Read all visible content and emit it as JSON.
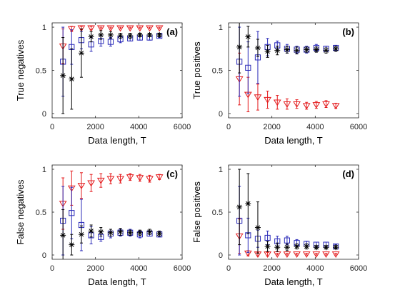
{
  "chart_data": [
    {
      "type": "scatter",
      "tag": "(a)",
      "xlabel": "Data length, T",
      "ylabel": "True negatives",
      "xlim": [
        0,
        6000
      ],
      "ylim": [
        -0.05,
        1.05
      ],
      "xticks": [
        0,
        2000,
        4000,
        6000
      ],
      "yticks": [
        0,
        0.5,
        1
      ],
      "xtick_labels": [
        "0",
        "2000",
        "4000",
        "6000"
      ],
      "ytick_labels": [
        "0",
        "0.5",
        "1"
      ],
      "series": [
        {
          "marker": "triangle-down",
          "color": "#e41a1c",
          "x": [
            500,
            900,
            1350,
            1800,
            2250,
            2700,
            3150,
            3600,
            4050,
            4500,
            4950
          ],
          "y": [
            0.78,
            0.98,
            0.99,
            0.99,
            0.99,
            0.99,
            0.99,
            0.99,
            0.99,
            0.99,
            0.99
          ],
          "err": [
            0.2,
            0.03,
            0.02,
            0.02,
            0.01,
            0.01,
            0.01,
            0.01,
            0.01,
            0.01,
            0.01
          ]
        },
        {
          "marker": "square",
          "color": "#2a2ab8",
          "x": [
            500,
            900,
            1350,
            1800,
            2250,
            2700,
            3150,
            3600,
            4050,
            4500,
            4950
          ],
          "y": [
            0.6,
            0.77,
            0.85,
            0.8,
            0.84,
            0.83,
            0.86,
            0.87,
            0.88,
            0.88,
            0.9
          ],
          "err": [
            0.4,
            0.2,
            0.1,
            0.08,
            0.06,
            0.05,
            0.04,
            0.03,
            0.03,
            0.03,
            0.02
          ]
        },
        {
          "marker": "asterisk",
          "color": "#000000",
          "x": [
            500,
            900,
            1350,
            1800,
            2250,
            2700,
            3150,
            3600,
            4050,
            4500,
            4950
          ],
          "y": [
            0.44,
            0.4,
            0.7,
            0.89,
            0.91,
            0.91,
            0.9,
            0.9,
            0.91,
            0.91,
            0.91
          ],
          "err": [
            0.44,
            0.35,
            0.28,
            0.06,
            0.05,
            0.04,
            0.03,
            0.03,
            0.02,
            0.02,
            0.02
          ]
        }
      ]
    },
    {
      "type": "scatter",
      "tag": "(b)",
      "xlabel": "Data length, T",
      "ylabel": "True positives",
      "xlim": [
        0,
        6000
      ],
      "ylim": [
        -0.05,
        1.05
      ],
      "xticks": [
        0,
        2000,
        4000,
        6000
      ],
      "yticks": [
        0,
        0.5,
        1
      ],
      "xtick_labels": [
        "0",
        "2000",
        "4000",
        "6000"
      ],
      "ytick_labels": [
        "0",
        "0.5",
        "1"
      ],
      "series": [
        {
          "marker": "triangle-down",
          "color": "#e41a1c",
          "x": [
            500,
            900,
            1350,
            1800,
            2250,
            2700,
            3150,
            3600,
            4050,
            4500,
            4950
          ],
          "y": [
            0.4,
            0.22,
            0.19,
            0.16,
            0.13,
            0.11,
            0.11,
            0.09,
            0.1,
            0.11,
            0.09
          ],
          "err": [
            0.3,
            0.2,
            0.15,
            0.1,
            0.08,
            0.06,
            0.05,
            0.04,
            0.04,
            0.04,
            0.03
          ]
        },
        {
          "marker": "square",
          "color": "#2a2ab8",
          "x": [
            500,
            900,
            1350,
            1800,
            2250,
            2700,
            3150,
            3600,
            4050,
            4500,
            4950
          ],
          "y": [
            0.6,
            0.53,
            0.65,
            0.77,
            0.79,
            0.75,
            0.74,
            0.74,
            0.76,
            0.75,
            0.76
          ],
          "err": [
            0.4,
            0.3,
            0.3,
            0.1,
            0.05,
            0.05,
            0.04,
            0.04,
            0.04,
            0.03,
            0.03
          ]
        },
        {
          "marker": "asterisk",
          "color": "#000000",
          "x": [
            500,
            900,
            1350,
            1800,
            2250,
            2700,
            3150,
            3600,
            4050,
            4500,
            4950
          ],
          "y": [
            0.77,
            0.89,
            0.76,
            0.72,
            0.73,
            0.74,
            0.73,
            0.74,
            0.74,
            0.73,
            0.75
          ],
          "err": [
            0.3,
            0.12,
            0.1,
            0.07,
            0.05,
            0.04,
            0.04,
            0.03,
            0.03,
            0.03,
            0.03
          ]
        }
      ]
    },
    {
      "type": "scatter",
      "tag": "(c)",
      "xlabel": "Data length, T",
      "ylabel": "False negatives",
      "xlim": [
        0,
        6000
      ],
      "ylim": [
        -0.05,
        1.05
      ],
      "xticks": [
        0,
        2000,
        4000,
        6000
      ],
      "yticks": [
        0,
        0.5,
        1
      ],
      "xtick_labels": [
        "0",
        "2000",
        "4000",
        "6000"
      ],
      "ytick_labels": [
        "0",
        "0.5",
        "1"
      ],
      "series": [
        {
          "marker": "triangle-down",
          "color": "#e41a1c",
          "x": [
            500,
            900,
            1350,
            1800,
            2250,
            2700,
            3150,
            3600,
            4050,
            4500,
            4950
          ],
          "y": [
            0.6,
            0.78,
            0.81,
            0.84,
            0.87,
            0.89,
            0.89,
            0.91,
            0.9,
            0.89,
            0.91
          ],
          "err": [
            0.3,
            0.2,
            0.15,
            0.1,
            0.08,
            0.06,
            0.05,
            0.04,
            0.04,
            0.04,
            0.03
          ]
        },
        {
          "marker": "square",
          "color": "#2a2ab8",
          "x": [
            500,
            900,
            1350,
            1800,
            2250,
            2700,
            3150,
            3600,
            4050,
            4500,
            4950
          ],
          "y": [
            0.4,
            0.49,
            0.35,
            0.23,
            0.21,
            0.25,
            0.26,
            0.26,
            0.24,
            0.25,
            0.24
          ],
          "err": [
            0.4,
            0.3,
            0.3,
            0.1,
            0.05,
            0.05,
            0.04,
            0.04,
            0.04,
            0.03,
            0.03
          ]
        },
        {
          "marker": "asterisk",
          "color": "#000000",
          "x": [
            500,
            900,
            1350,
            1800,
            2250,
            2700,
            3150,
            3600,
            4050,
            4500,
            4950
          ],
          "y": [
            0.23,
            0.12,
            0.24,
            0.28,
            0.27,
            0.26,
            0.27,
            0.26,
            0.26,
            0.27,
            0.25
          ],
          "err": [
            0.3,
            0.12,
            0.1,
            0.07,
            0.05,
            0.04,
            0.04,
            0.03,
            0.03,
            0.03,
            0.03
          ]
        }
      ]
    },
    {
      "type": "scatter",
      "tag": "(d)",
      "xlabel": "Data length, T",
      "ylabel": "False positives",
      "xlim": [
        0,
        6000
      ],
      "ylim": [
        -0.05,
        1.05
      ],
      "xticks": [
        0,
        2000,
        4000,
        6000
      ],
      "yticks": [
        0,
        0.5,
        1
      ],
      "xtick_labels": [
        "0",
        "2000",
        "4000",
        "6000"
      ],
      "ytick_labels": [
        "0",
        "0.5",
        "1"
      ],
      "series": [
        {
          "marker": "triangle-down",
          "color": "#e41a1c",
          "x": [
            500,
            900,
            1350,
            1800,
            2250,
            2700,
            3150,
            3600,
            4050,
            4500,
            4950
          ],
          "y": [
            0.22,
            0.02,
            0.01,
            0.01,
            0.01,
            0.01,
            0.01,
            0.01,
            0.01,
            0.01,
            0.01
          ],
          "err": [
            0.2,
            0.03,
            0.02,
            0.02,
            0.01,
            0.01,
            0.01,
            0.01,
            0.01,
            0.01,
            0.01
          ]
        },
        {
          "marker": "square",
          "color": "#2a2ab8",
          "x": [
            500,
            900,
            1350,
            1800,
            2250,
            2700,
            3150,
            3600,
            4050,
            4500,
            4950
          ],
          "y": [
            0.4,
            0.23,
            0.19,
            0.2,
            0.16,
            0.17,
            0.14,
            0.13,
            0.12,
            0.12,
            0.1
          ],
          "err": [
            0.4,
            0.2,
            0.1,
            0.08,
            0.06,
            0.05,
            0.04,
            0.03,
            0.03,
            0.03,
            0.02
          ]
        },
        {
          "marker": "asterisk",
          "color": "#000000",
          "x": [
            500,
            900,
            1350,
            1800,
            2250,
            2700,
            3150,
            3600,
            4050,
            4500,
            4950
          ],
          "y": [
            0.56,
            0.6,
            0.32,
            0.1,
            0.09,
            0.09,
            0.1,
            0.1,
            0.09,
            0.09,
            0.09
          ],
          "err": [
            0.44,
            0.35,
            0.3,
            0.06,
            0.05,
            0.04,
            0.03,
            0.03,
            0.02,
            0.02,
            0.02
          ]
        }
      ]
    }
  ]
}
